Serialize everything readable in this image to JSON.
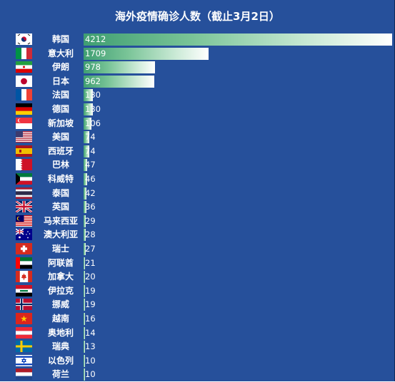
{
  "chart_data": {
    "type": "bar",
    "orientation": "horizontal",
    "title": "海外疫情确诊人数（截止3月2日）",
    "categories": [
      "韩国",
      "意大利",
      "伊朗",
      "日本",
      "法国",
      "德国",
      "新加坡",
      "美国",
      "西班牙",
      "巴林",
      "科威特",
      "泰国",
      "英国",
      "马来西亚",
      "澳大利亚",
      "瑞士",
      "阿联酋",
      "加拿大",
      "伊拉克",
      "挪威",
      "越南",
      "奥地利",
      "瑞典",
      "以色列",
      "荷兰"
    ],
    "values": [
      4212,
      1709,
      978,
      962,
      130,
      130,
      106,
      74,
      74,
      47,
      46,
      42,
      36,
      29,
      28,
      27,
      21,
      20,
      19,
      19,
      16,
      14,
      13,
      10,
      10
    ],
    "flags": [
      "south-korea",
      "italy",
      "iran",
      "japan",
      "france",
      "germany",
      "singapore",
      "usa",
      "spain",
      "bahrain",
      "kuwait",
      "thailand",
      "uk",
      "malaysia",
      "australia",
      "switzerland",
      "uae",
      "canada",
      "iraq",
      "norway",
      "vietnam",
      "austria",
      "sweden",
      "israel",
      "netherlands"
    ],
    "xlim": [
      0,
      4212
    ],
    "grid": false,
    "legend": "none",
    "colors": {
      "background": "#26509b",
      "bar_start": "#3f9e72",
      "bar_end": "#ffffff",
      "text": "#ffffff"
    }
  }
}
